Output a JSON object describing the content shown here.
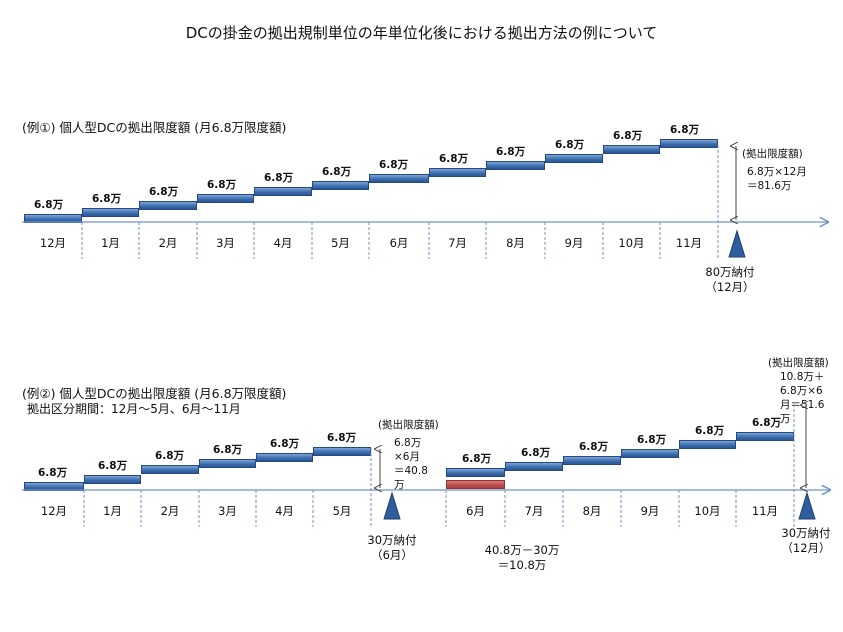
{
  "title": "DCの掛金の拠出規制単位の年単位化後における拠出方法の例について",
  "example1": {
    "heading": "(例①) 個人型DCの拠出限度額 (月6.8万限度額)",
    "months": [
      "12月",
      "1月",
      "2月",
      "3月",
      "4月",
      "5月",
      "6月",
      "7月",
      "8月",
      "9月",
      "10月",
      "11月"
    ],
    "amounts": [
      "6.8万",
      "6.8万",
      "6.8万",
      "6.8万",
      "6.8万",
      "6.8万",
      "6.8万",
      "6.8万",
      "6.8万",
      "6.8万",
      "6.8万",
      "6.8万"
    ],
    "limit_label": "(拠出限度額)",
    "limit_calc": "6.8万×12月\n＝81.6万",
    "payment": "80万納付\n（12月）"
  },
  "example2": {
    "heading": "(例②) 個人型DCの拠出限度額 (月6.8万限度額)",
    "period": "拠出区分期間：12月～5月、6月～11月",
    "months_a": [
      "12月",
      "1月",
      "2月",
      "3月",
      "4月",
      "5月"
    ],
    "amounts_a": [
      "6.8万",
      "6.8万",
      "6.8万",
      "6.8万",
      "6.8万",
      "6.8万"
    ],
    "limit_a_label": "(拠出限度額)",
    "limit_a_calc": "6.8万\n×6月\n＝40.8\n万",
    "payment_a": "30万納付\n（6月）",
    "months_b": [
      "6月",
      "7月",
      "8月",
      "9月",
      "10月",
      "11月"
    ],
    "amounts_b": [
      "6.8万",
      "6.8万",
      "6.8万",
      "6.8万",
      "6.8万",
      "6.8万"
    ],
    "carry_calc": "40.8万－30万\n＝10.8万",
    "limit_b_label": "(拠出限度額)",
    "limit_b_calc": "10.8万＋\n6.8万×6\n月＝51.6\n万",
    "payment_b": "30万納付\n（12月）"
  },
  "colors": {
    "bar": "#3e6fb1",
    "carry_bar": "#c0504d",
    "axis": "#6f93c8",
    "triangle": "#2f5e9e"
  }
}
